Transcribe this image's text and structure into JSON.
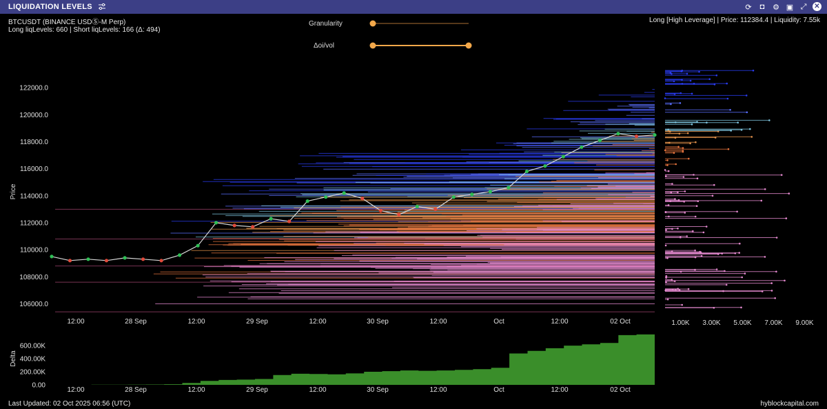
{
  "window": {
    "title": "LIQUIDATION LEVELS",
    "icons": [
      "sliders-icon",
      "refresh-icon",
      "camera-icon",
      "gear-icon",
      "save-icon",
      "expand-icon",
      "close-icon"
    ]
  },
  "header": {
    "symbol": "BTCUSDT (BINANCE USDⓈ-M Perp)",
    "levels": "Long liqLevels: 660 | Short liqLevels: 166 (Δ: 494)",
    "tooltip": "Long [High Leverage] | Price: 112384.4 | Liquidity: 7.55k"
  },
  "controls": {
    "granularity_label": "Granularity",
    "granularity_value": 0.0,
    "delta_label": "Δoi/vol",
    "delta_range": [
      0.0,
      1.0
    ],
    "accent": "#f3a84a"
  },
  "footer": {
    "updated": "Last Updated: 02 Oct 2025 06:56 (UTC)",
    "brand": "hyblockcapital.com"
  },
  "chart_data": [
    {
      "type": "line",
      "name": "price-chart",
      "ylabel": "Price",
      "yticks": [
        106000,
        108000,
        110000,
        112000,
        114000,
        116000,
        118000,
        120000,
        122000
      ],
      "ytick_labels": [
        "106000.0",
        "108000.0",
        "110000.0",
        "112000.0",
        "114000.0",
        "116000.0",
        "118000.0",
        "120000.0",
        "122000.0"
      ],
      "ylim": [
        105000,
        124000
      ],
      "xticks": [
        "12:00",
        "28 Sep",
        "12:00",
        "29 Sep",
        "12:00",
        "30 Sep",
        "12:00",
        "Oct",
        "12:00",
        "02 Oct"
      ],
      "price": [
        109500,
        109200,
        109300,
        109200,
        109400,
        109300,
        109200,
        109600,
        110300,
        112000,
        111800,
        111700,
        112300,
        112100,
        113600,
        113900,
        114200,
        113800,
        112900,
        112600,
        113200,
        113000,
        113900,
        114100,
        114300,
        114600,
        115800,
        116200,
        116900,
        117600,
        118100,
        118600,
        118400,
        118500
      ]
    },
    {
      "type": "bar",
      "name": "liquidity-profile",
      "xticks": [
        "1.00K",
        "3.00K",
        "5.00K",
        "7.00K",
        "9.00K"
      ],
      "xlim": [
        0,
        10000
      ]
    },
    {
      "type": "area",
      "name": "delta-chart",
      "ylabel": "Delta",
      "yticks": [
        0,
        200000,
        400000,
        600000
      ],
      "ytick_labels": [
        "0.00",
        "200.00K",
        "400.00K",
        "600.00K"
      ],
      "ylim": [
        0,
        780000
      ],
      "color": "#3a8e2a",
      "values": [
        0,
        0,
        2000,
        3000,
        4000,
        5000,
        10000,
        30000,
        60000,
        75000,
        80000,
        90000,
        150000,
        170000,
        165000,
        160000,
        175000,
        200000,
        210000,
        220000,
        215000,
        220000,
        230000,
        240000,
        260000,
        480000,
        520000,
        560000,
        600000,
        620000,
        640000,
        760000,
        770000,
        770000
      ]
    }
  ]
}
